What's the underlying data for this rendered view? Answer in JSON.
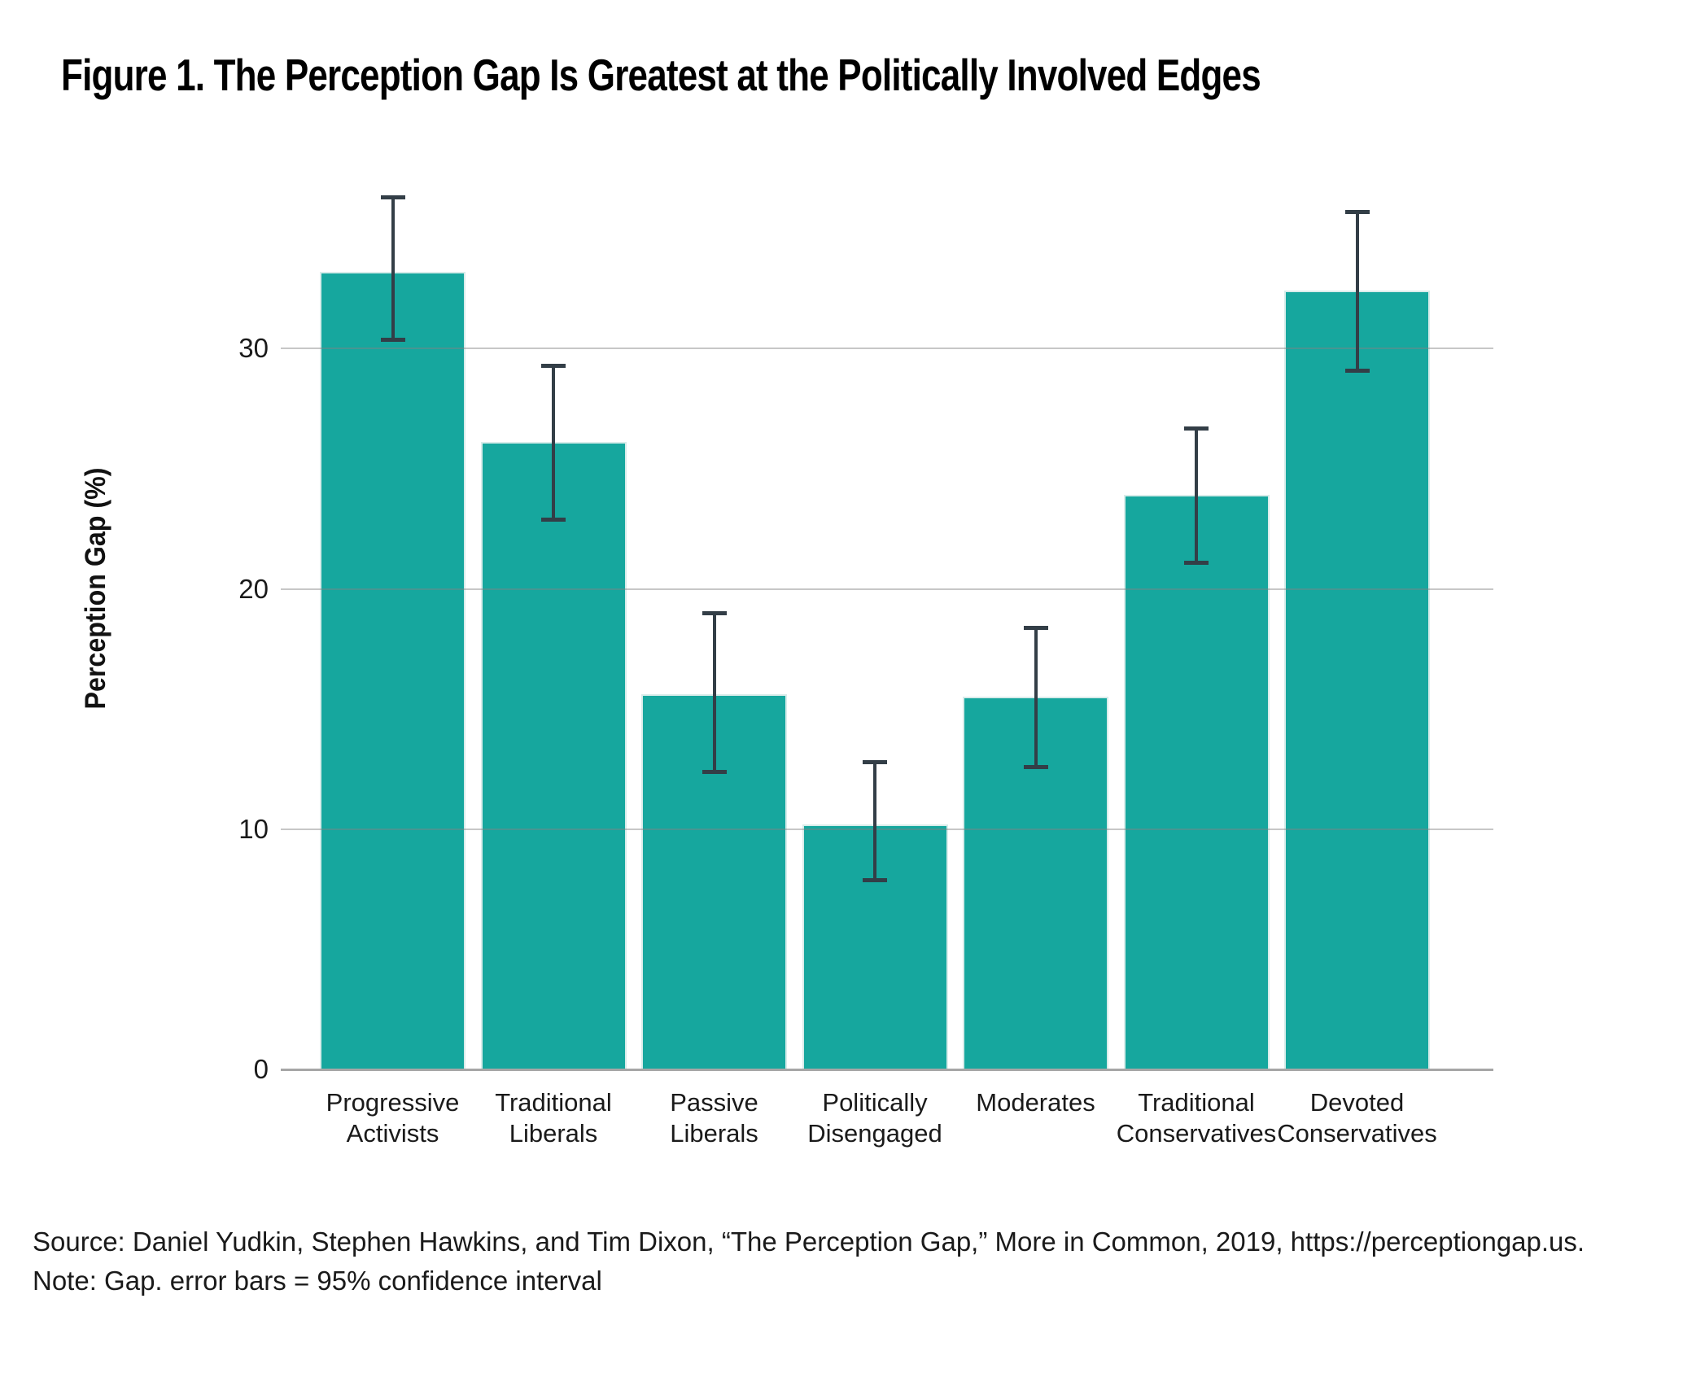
{
  "chart_data": {
    "type": "bar",
    "title": "Figure 1. The Perception Gap Is Greatest at the Politically Involved Edges",
    "xlabel": "",
    "ylabel": "Perception Gap (%)",
    "ylim": [
      0,
      38.75
    ],
    "yticks": [
      0,
      10,
      20,
      30
    ],
    "grid": "horizontal gridlines at y ticks, drawn over bars",
    "legend": "none",
    "categories": [
      "Progressive Activists",
      "Traditional Liberals",
      "Passive Liberals",
      "Politically Disengaged",
      "Moderates",
      "Traditional Conservatives",
      "Devoted Conservatives"
    ],
    "category_lines": [
      [
        "Progressive",
        "Activists"
      ],
      [
        "Traditional",
        "Liberals"
      ],
      [
        "Passive",
        "Liberals"
      ],
      [
        "Politically",
        "Disengaged"
      ],
      [
        "Moderates"
      ],
      [
        "Traditional",
        "Conservatives"
      ],
      [
        "Devoted",
        "Conservatives"
      ]
    ],
    "values": [
      33.2,
      26.1,
      15.6,
      10.2,
      15.5,
      23.9,
      32.4
    ],
    "error_bars": {
      "meaning": "95% confidence interval",
      "low": [
        30.4,
        22.9,
        12.4,
        7.9,
        12.6,
        21.1,
        29.1
      ],
      "high": [
        36.3,
        29.3,
        19.0,
        12.8,
        18.4,
        26.7,
        35.7
      ]
    }
  },
  "captions": {
    "source_line": "Source: Daniel Yudkin, Stephen Hawkins, and Tim Dixon, “The Perception Gap,” More in Common, 2019, https://perceptiongap.us.",
    "note_line": "Note: Gap. error bars = 95% confidence interval"
  },
  "colors": {
    "bar": "#16A79E",
    "bar_edge": "#D8ECEA",
    "error_bar": "#333E47",
    "gridline": "#BDBDBD",
    "axis_line": "#A6A6A6",
    "text": "#111111"
  }
}
